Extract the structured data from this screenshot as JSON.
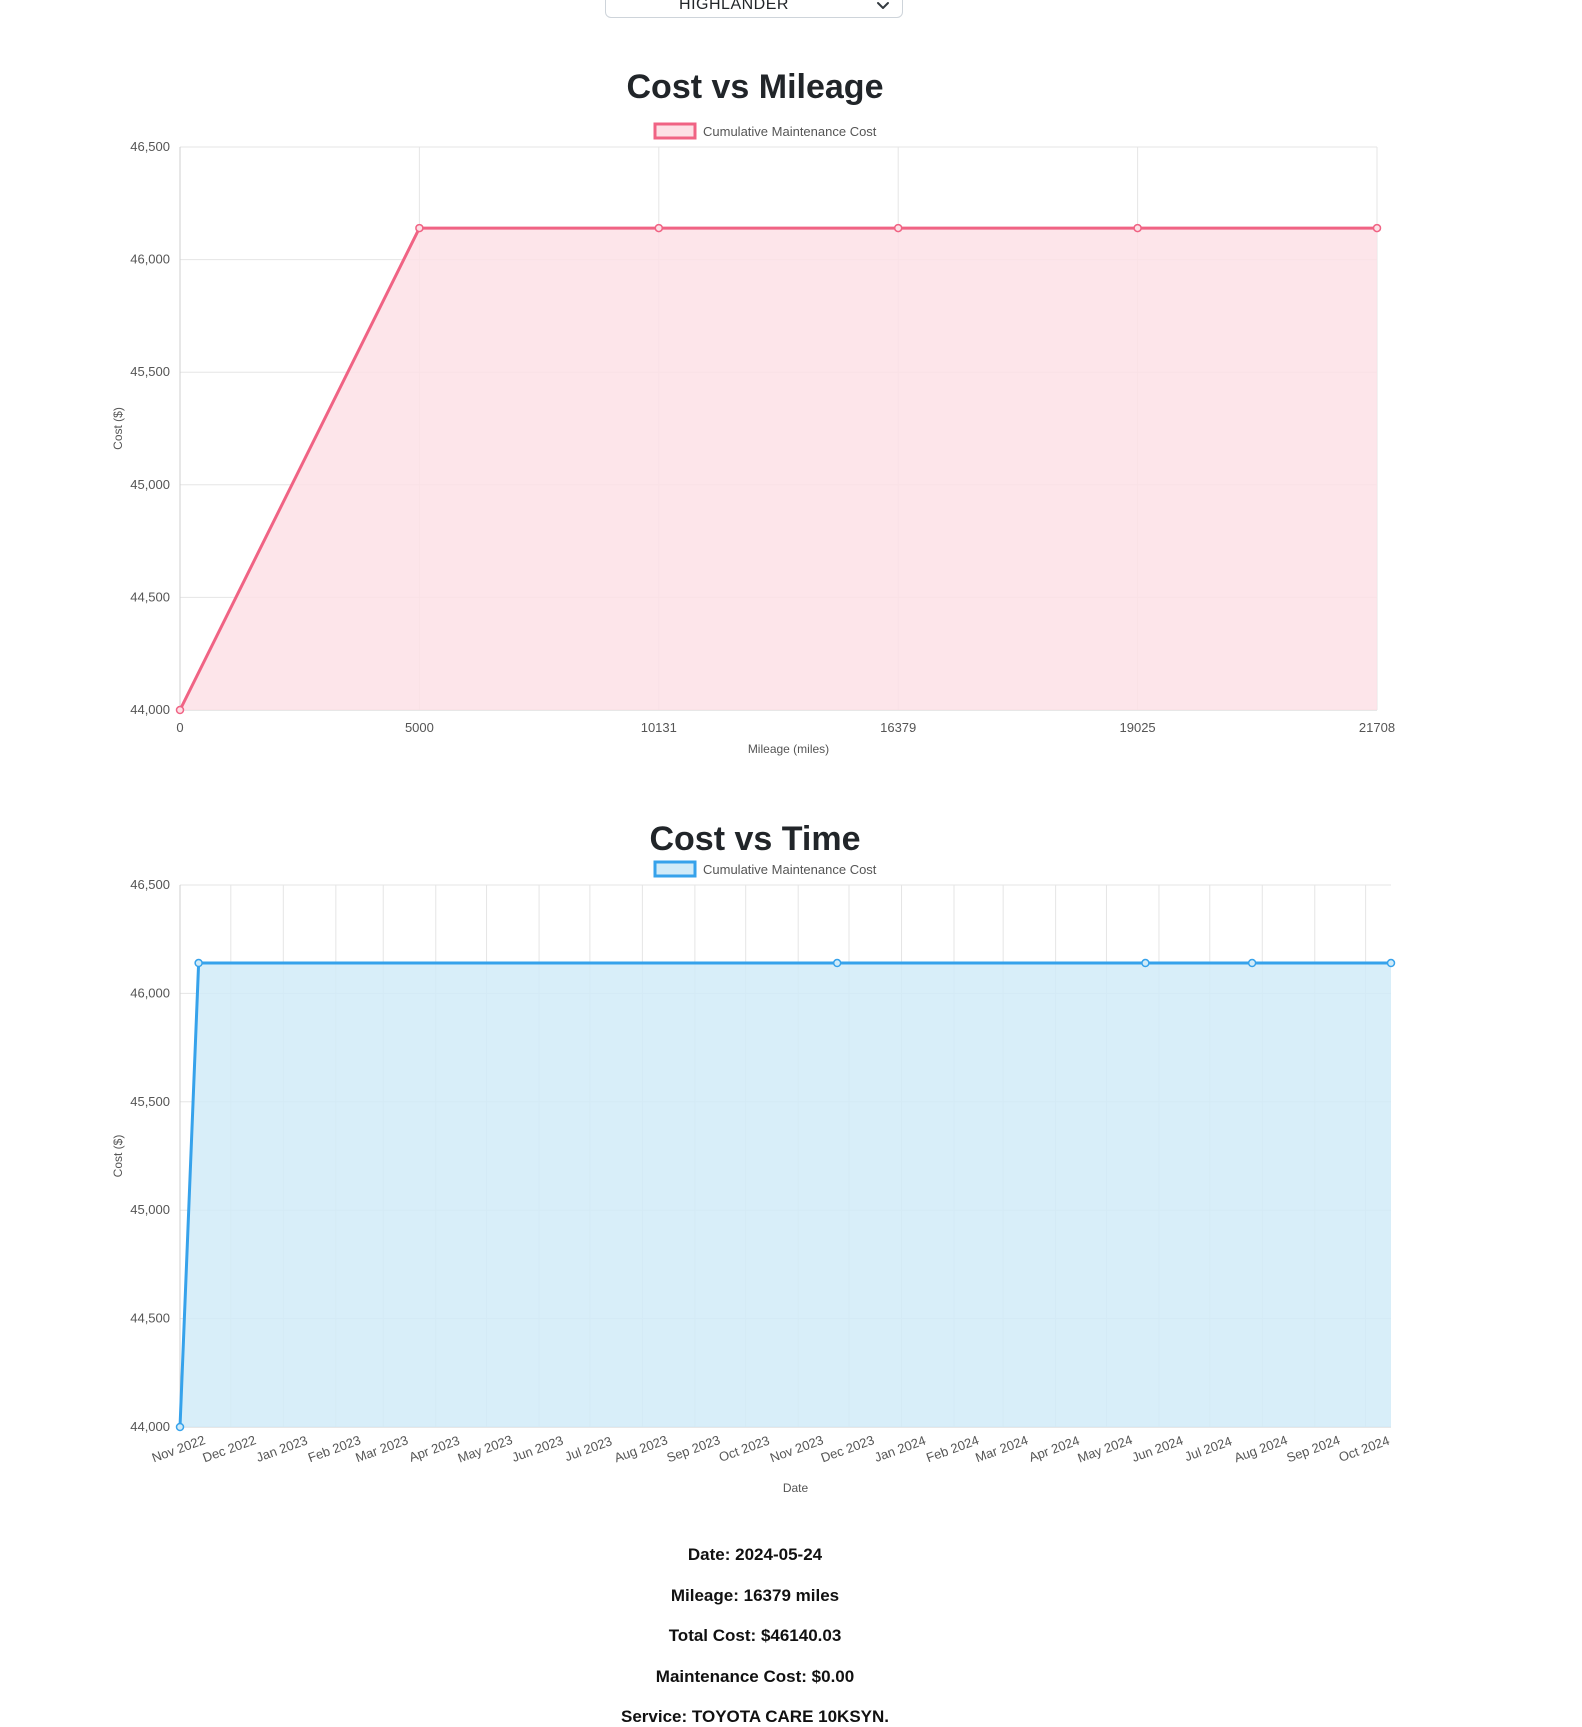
{
  "vehicle_select": {
    "value": "HIGHLANDER",
    "chevron_icon": "chevron-down-icon"
  },
  "chart_data": [
    {
      "type": "area",
      "title": "Cost vs Mileage",
      "legend": "Cumulative Maintenance Cost",
      "legend_position": "top",
      "xlabel": "Mileage (miles)",
      "ylabel": "Cost ($)",
      "x_scale": "category",
      "categories": [
        "0",
        "5000",
        "10131",
        "16379",
        "19025",
        "21708"
      ],
      "values": [
        44000,
        46140.03,
        46140.03,
        46140.03,
        46140.03,
        46140.03
      ],
      "ylim": [
        44000,
        46500
      ],
      "yticks": [
        "44,000",
        "44,500",
        "45,000",
        "45,500",
        "46,000",
        "46,500"
      ],
      "grid": true,
      "colors": {
        "line": "#f06384",
        "fill": "#fde0e6"
      }
    },
    {
      "type": "area",
      "title": "Cost vs Time",
      "legend": "Cumulative Maintenance Cost",
      "legend_position": "top",
      "xlabel": "Date",
      "ylabel": "Cost ($)",
      "x_scale": "time",
      "x": [
        "2022-11-01",
        "2022-11-12",
        "2023-11-24",
        "2024-05-24",
        "2024-07-26",
        "2024-10-16"
      ],
      "values": [
        44000,
        46140.03,
        46140.03,
        46140.03,
        46140.03,
        46140.03
      ],
      "xlim": [
        "2022-11-01",
        "2024-10-16"
      ],
      "xticks": [
        "Nov 2022",
        "Dec 2022",
        "Jan 2023",
        "Feb 2023",
        "Mar 2023",
        "Apr 2023",
        "May 2023",
        "Jun 2023",
        "Jul 2023",
        "Aug 2023",
        "Sep 2023",
        "Oct 2023",
        "Nov 2023",
        "Dec 2023",
        "Jan 2024",
        "Feb 2024",
        "Mar 2024",
        "Apr 2024",
        "May 2024",
        "Jun 2024",
        "Jul 2024",
        "Aug 2024",
        "Sep 2024",
        "Oct 2024"
      ],
      "ylim": [
        44000,
        46500
      ],
      "yticks": [
        "44,000",
        "44,500",
        "45,000",
        "45,500",
        "46,000",
        "46,500"
      ],
      "grid": true,
      "colors": {
        "line": "#36a2eb",
        "fill": "#d1ebf8"
      }
    }
  ],
  "details": {
    "date_label": "Date:",
    "date_value": "2024-05-24",
    "mileage_label": "Mileage:",
    "mileage_value": "16379 miles",
    "total_label": "Total Cost:",
    "total_value": "$46140.03",
    "maint_label": "Maintenance Cost:",
    "maint_value": "$0.00",
    "service_label": "Service:",
    "service_value": "TOYOTA CARE 10KSYN."
  }
}
